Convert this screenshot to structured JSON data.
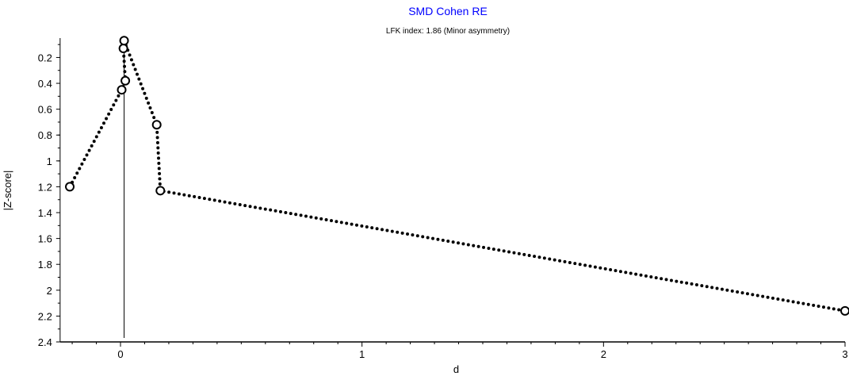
{
  "chart_data": {
    "type": "line",
    "title": "SMD Cohen RE",
    "subtitle": "LFK index: 1.86 (Minor asymmetry)",
    "xlabel": "d",
    "ylabel": "|Z-score|",
    "xlim": [
      -0.25,
      3
    ],
    "ylim": [
      0.05,
      2.4
    ],
    "y_inverted": true,
    "x_ticks": [
      "0",
      "1",
      "2",
      "3"
    ],
    "y_ticks": [
      "0.2",
      "0.4",
      "0.6",
      "0.8",
      "1",
      "1.2",
      "1.4",
      "1.6",
      "1.8",
      "2",
      "2.2",
      "2.4"
    ],
    "reference_line_x": 0.015,
    "line_style": "dotted",
    "marker": "open-circle",
    "points": [
      {
        "x": -0.21,
        "y": 1.2
      },
      {
        "x": 0.005,
        "y": 0.45
      },
      {
        "x": 0.02,
        "y": 0.38
      },
      {
        "x": 0.012,
        "y": 0.13
      },
      {
        "x": 0.015,
        "y": 0.07
      },
      {
        "x": 0.15,
        "y": 0.72
      },
      {
        "x": 0.165,
        "y": 1.23
      },
      {
        "x": 3.0,
        "y": 2.16
      }
    ],
    "colors": {
      "title": "#0000ff",
      "series": "#000000"
    }
  }
}
